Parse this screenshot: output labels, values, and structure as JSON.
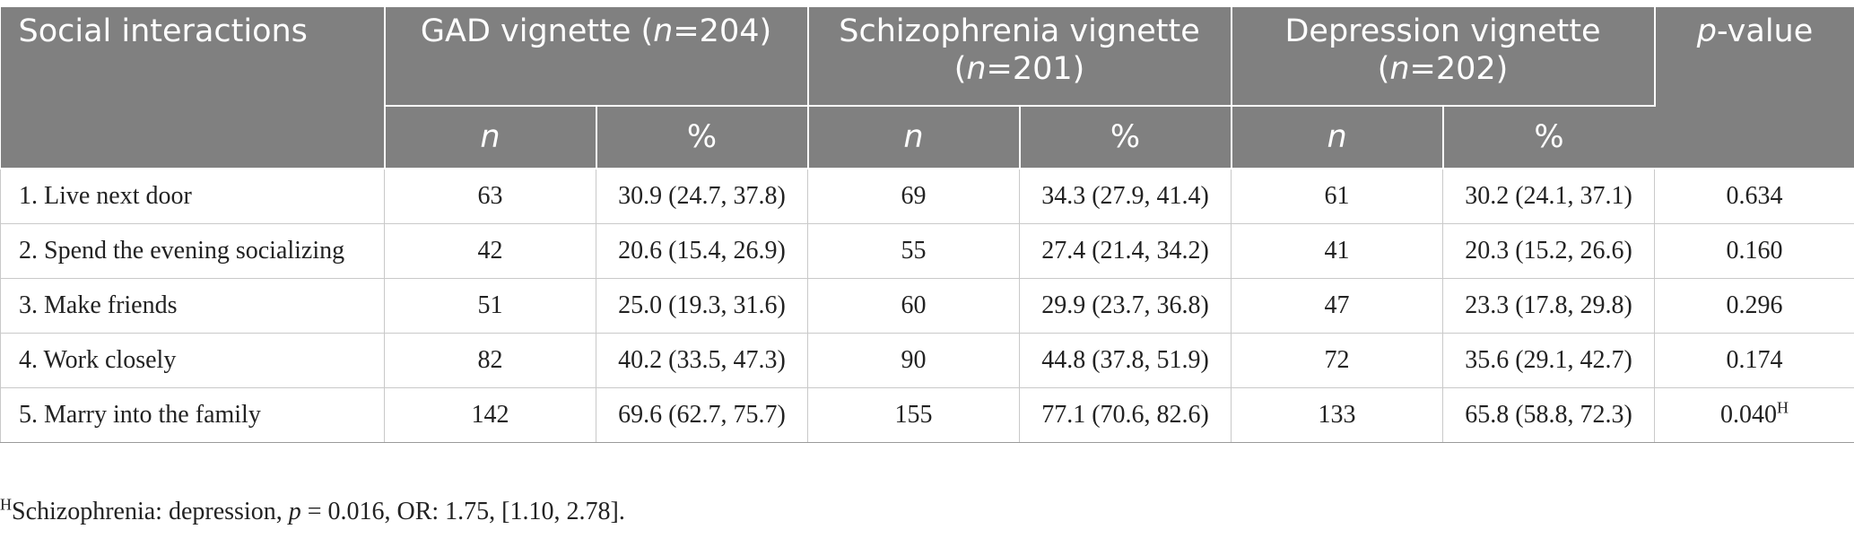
{
  "header": {
    "col0": "Social interactions",
    "gad": {
      "label": "GAD vignette (",
      "n_italic": "n",
      "n_rest": "=204)"
    },
    "schizophrenia": {
      "label": "Schizophrenia vignette",
      "open": "(",
      "n_italic": "n",
      "n_rest": "=201)"
    },
    "depression": {
      "label": "Depression vignette",
      "open": "(",
      "n_italic": "n",
      "n_rest": "=202)"
    },
    "pvalue": {
      "italic": "p",
      "rest": "-value"
    },
    "sub": {
      "n": "n",
      "pct": "%"
    }
  },
  "rows": [
    {
      "label": "1. Live next door",
      "gad_n": "63",
      "gad_pct": "30.9 (24.7, 37.8)",
      "sch_n": "69",
      "sch_pct": "34.3 (27.9, 41.4)",
      "dep_n": "61",
      "dep_pct": "30.2 (24.1, 37.1)",
      "p": "0.634",
      "p_sup": ""
    },
    {
      "label": "2. Spend the evening socializing",
      "gad_n": "42",
      "gad_pct": "20.6 (15.4, 26.9)",
      "sch_n": "55",
      "sch_pct": "27.4 (21.4, 34.2)",
      "dep_n": "41",
      "dep_pct": "20.3 (15.2, 26.6)",
      "p": "0.160",
      "p_sup": ""
    },
    {
      "label": "3. Make friends",
      "gad_n": "51",
      "gad_pct": "25.0 (19.3, 31.6)",
      "sch_n": "60",
      "sch_pct": "29.9 (23.7, 36.8)",
      "dep_n": "47",
      "dep_pct": "23.3 (17.8, 29.8)",
      "p": "0.296",
      "p_sup": ""
    },
    {
      "label": "4. Work closely",
      "gad_n": "82",
      "gad_pct": "40.2 (33.5, 47.3)",
      "sch_n": "90",
      "sch_pct": "44.8 (37.8, 51.9)",
      "dep_n": "72",
      "dep_pct": "35.6 (29.1, 42.7)",
      "p": "0.174",
      "p_sup": ""
    },
    {
      "label": "5. Marry into the family",
      "gad_n": "142",
      "gad_pct": "69.6 (62.7, 75.7)",
      "sch_n": "155",
      "sch_pct": "77.1 (70.6, 82.6)",
      "dep_n": "133",
      "dep_pct": "65.8 (58.8, 72.3)",
      "p": "0.040",
      "p_sup": "H"
    }
  ],
  "footnote": {
    "marker": "H",
    "text_before": "Schizophrenia: depression, ",
    "p_italic": "p",
    "text_after": " = 0.016, OR: 1.75, [1.10, 2.78]."
  }
}
